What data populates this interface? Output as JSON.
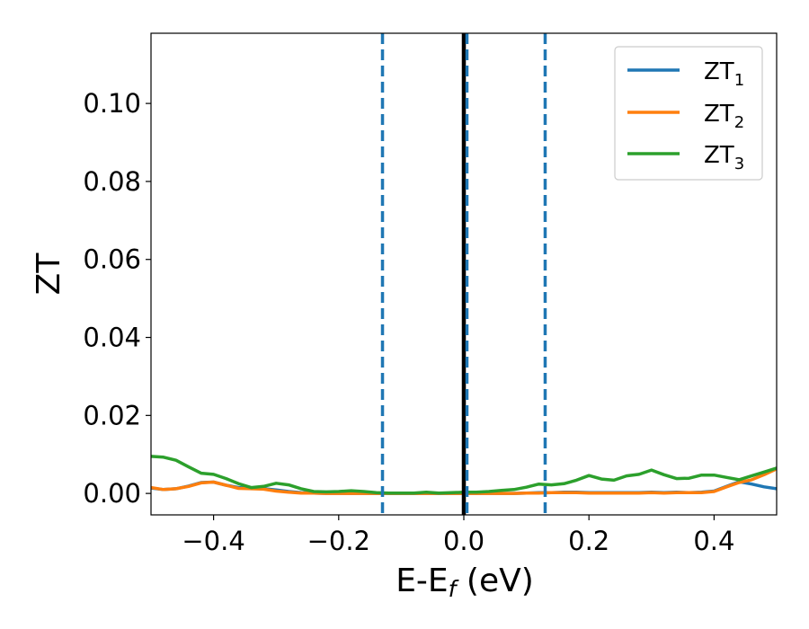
{
  "chart_data": {
    "type": "line",
    "title": "",
    "xlabel_main": "E-E",
    "xlabel_sub": "f",
    "xlabel_unit": " (eV)",
    "ylabel": "ZT",
    "xlim": [
      -0.5,
      0.5
    ],
    "ylim": [
      -0.0055,
      0.118
    ],
    "xticks": [
      -0.4,
      -0.2,
      0.0,
      0.2,
      0.4
    ],
    "xtick_labels": [
      "−0.4",
      "−0.2",
      "0.0",
      "0.2",
      "0.4"
    ],
    "yticks": [
      0.0,
      0.02,
      0.04,
      0.06,
      0.08,
      0.1
    ],
    "ytick_labels": [
      "0.00",
      "0.02",
      "0.04",
      "0.06",
      "0.08",
      "0.10"
    ],
    "grid": false,
    "legend_position": "top-right",
    "vertical_lines": [
      {
        "x": -0.13,
        "style": "dashed",
        "color": "#1f77b4"
      },
      {
        "x": 0.0,
        "style": "solid",
        "color": "#000000"
      },
      {
        "x": 0.005,
        "style": "dashed",
        "color": "#1f77b4"
      },
      {
        "x": 0.13,
        "style": "dashed",
        "color": "#1f77b4"
      }
    ],
    "x": [
      -0.5,
      -0.48,
      -0.46,
      -0.44,
      -0.42,
      -0.4,
      -0.38,
      -0.36,
      -0.34,
      -0.32,
      -0.3,
      -0.28,
      -0.26,
      -0.24,
      -0.22,
      -0.2,
      -0.18,
      -0.16,
      -0.14,
      -0.12,
      -0.1,
      -0.08,
      -0.06,
      -0.04,
      -0.02,
      0.0,
      0.02,
      0.04,
      0.06,
      0.08,
      0.1,
      0.12,
      0.14,
      0.16,
      0.18,
      0.2,
      0.22,
      0.24,
      0.26,
      0.28,
      0.3,
      0.32,
      0.34,
      0.36,
      0.38,
      0.4,
      0.42,
      0.44,
      0.46,
      0.48,
      0.5
    ],
    "series": [
      {
        "name_main": "ZT",
        "name_sub": "1",
        "color": "#1f77b4",
        "values": [
          0.0014,
          0.001,
          0.0012,
          0.0019,
          0.0028,
          0.0029,
          0.0021,
          0.0015,
          0.0013,
          0.0012,
          0.0009,
          0.0005,
          0.0002,
          0.0001,
          0.0,
          0.0,
          0.0,
          0.0,
          0.0,
          0.0,
          0.0,
          0.0,
          0.0,
          0.0,
          0.0,
          0.0,
          0.0,
          0.0,
          0.0,
          0.0,
          0.0001,
          0.0002,
          0.0002,
          0.0003,
          0.0003,
          0.0002,
          0.0002,
          0.0002,
          0.0002,
          0.0002,
          0.0003,
          0.0002,
          0.0003,
          0.0002,
          0.0003,
          0.0006,
          0.0018,
          0.003,
          0.0024,
          0.0017,
          0.0012
        ]
      },
      {
        "name_main": "ZT",
        "name_sub": "2",
        "color": "#ff7f0e",
        "values": [
          0.0015,
          0.001,
          0.0012,
          0.0018,
          0.0027,
          0.0029,
          0.0021,
          0.0013,
          0.0012,
          0.0011,
          0.0006,
          0.0003,
          0.0001,
          0.0001,
          0.0,
          0.0,
          0.0,
          0.0,
          0.0,
          0.0,
          0.0,
          0.0,
          0.0,
          0.0,
          0.0,
          0.0,
          0.0,
          0.0,
          0.0,
          0.0,
          0.0001,
          0.0001,
          0.0002,
          0.0002,
          0.0002,
          0.0001,
          0.0001,
          0.0001,
          0.0001,
          0.0001,
          0.0002,
          0.0001,
          0.0002,
          0.0002,
          0.0002,
          0.0005,
          0.0017,
          0.0028,
          0.0035,
          0.0048,
          0.0063
        ]
      },
      {
        "name_main": "ZT",
        "name_sub": "3",
        "color": "#2ca02c",
        "values": [
          0.0095,
          0.0093,
          0.0085,
          0.0068,
          0.0052,
          0.0049,
          0.0038,
          0.0025,
          0.0015,
          0.0018,
          0.0026,
          0.0022,
          0.0012,
          0.0005,
          0.0004,
          0.0005,
          0.0007,
          0.0005,
          0.0002,
          0.0001,
          0.0001,
          0.0001,
          0.0003,
          0.0001,
          0.0002,
          0.0003,
          0.0003,
          0.0005,
          0.0008,
          0.001,
          0.0016,
          0.0024,
          0.0022,
          0.0025,
          0.0034,
          0.0046,
          0.0037,
          0.0034,
          0.0045,
          0.0049,
          0.006,
          0.0048,
          0.0038,
          0.0039,
          0.0047,
          0.0047,
          0.0041,
          0.0035,
          0.0045,
          0.0055,
          0.0065
        ]
      }
    ]
  }
}
